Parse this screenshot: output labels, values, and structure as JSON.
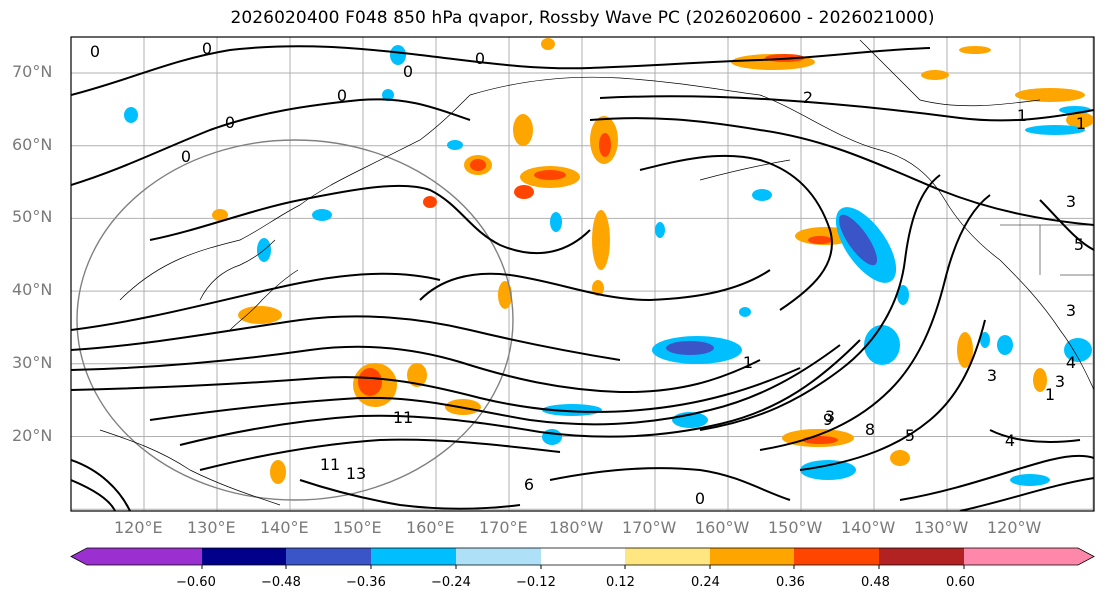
{
  "title": "2026020400 F048 850 hPa qvapor, Rossby Wave PC (2026020600 - 2026021000)",
  "lat_labels": [
    "70°N",
    "60°N",
    "50°N",
    "40°N",
    "30°N",
    "20°N"
  ],
  "lon_labels": [
    "120°E",
    "130°E",
    "140°E",
    "150°E",
    "160°E",
    "170°E",
    "180°W",
    "170°W",
    "160°W",
    "150°W",
    "140°W",
    "130°W",
    "120°W"
  ],
  "colorbar": {
    "colors": [
      "#9b30d0",
      "#00008b",
      "#3a55c8",
      "#00bfff",
      "#aee1f7",
      "#ffffff",
      "#ffe680",
      "#ffa500",
      "#ff4500",
      "#b22222",
      "#ff88aa"
    ],
    "tick_labels": [
      "−0.60",
      "−0.48",
      "−0.36",
      "−0.24",
      "−0.12",
      "0.12",
      "0.24",
      "0.36",
      "0.48",
      "0.60"
    ]
  },
  "contour_labels": [
    "0",
    "0",
    "0",
    "0",
    "0",
    "0",
    "0",
    "2",
    "1",
    "1",
    "3",
    "5",
    "3",
    "4",
    "3",
    "1",
    "3",
    "4",
    "5",
    "8",
    "9",
    "11",
    "11",
    "13",
    "6",
    "0",
    "3",
    "1"
  ]
}
